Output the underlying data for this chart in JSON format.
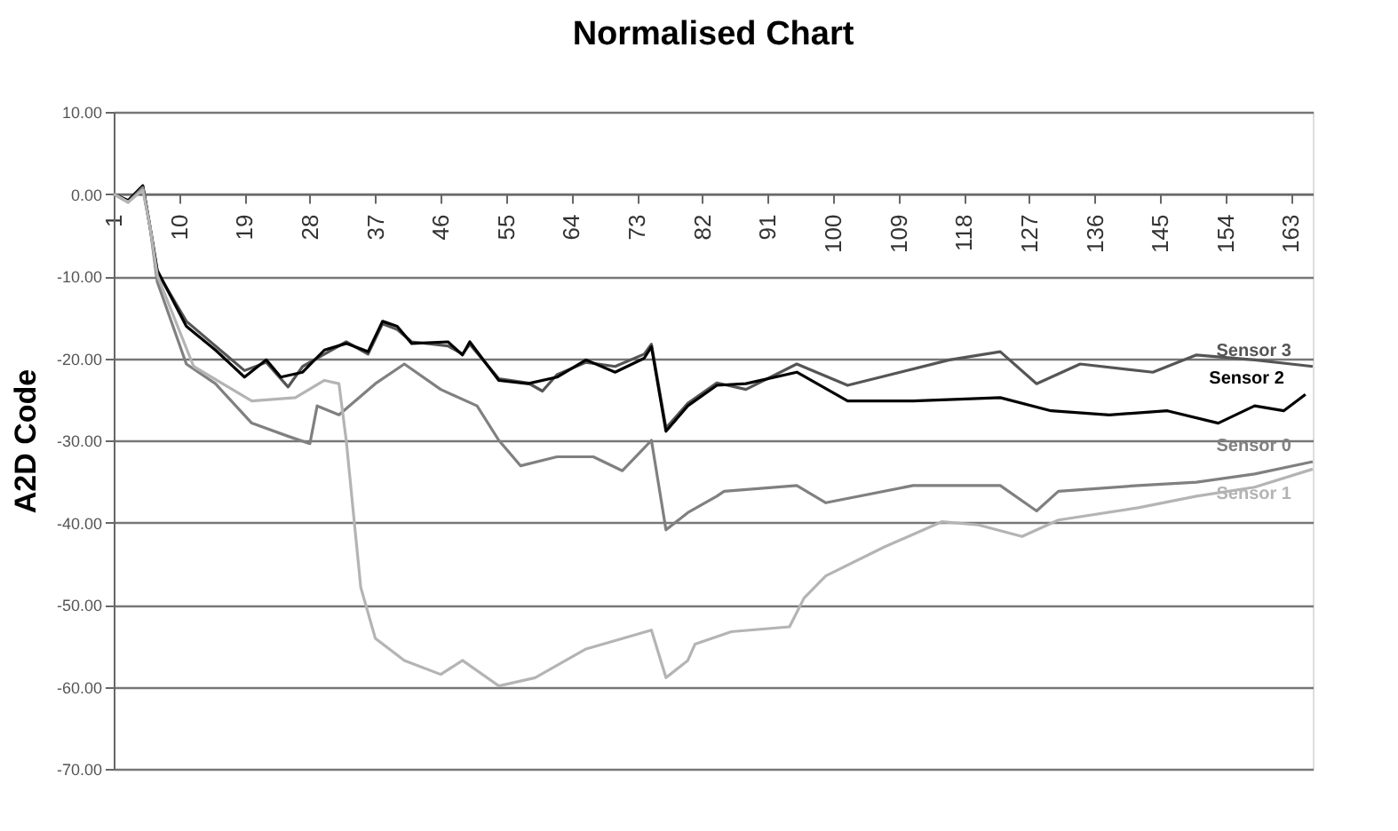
{
  "chart_data": {
    "type": "line",
    "title": "Normalised Chart",
    "ylabel": "A2D Code",
    "xlim": [
      1,
      166
    ],
    "xticks": [
      1,
      10,
      19,
      28,
      37,
      46,
      55,
      64,
      73,
      82,
      91,
      100,
      109,
      118,
      127,
      136,
      145,
      154,
      163
    ],
    "ylim": [
      -70,
      10
    ],
    "yticks": [
      {
        "value": 10,
        "label": "10.00"
      },
      {
        "value": 0,
        "label": "0.00"
      },
      {
        "value": -10,
        "label": "-10.00"
      },
      {
        "value": -20,
        "label": "-20.00"
      },
      {
        "value": -30,
        "label": "-30.00"
      },
      {
        "value": -40,
        "label": "-40.00"
      },
      {
        "value": -50,
        "label": "-50.00"
      },
      {
        "value": -60,
        "label": "-60.00"
      },
      {
        "value": -70,
        "label": "-70.00"
      }
    ],
    "grid": "y",
    "legend": false,
    "marker": "none",
    "line_style": "solid",
    "series": [
      {
        "name": "Sensor 3",
        "color": "#555555",
        "x": [
          1,
          3,
          5,
          6,
          7,
          11,
          15,
          19,
          22,
          25,
          27,
          30,
          33,
          36,
          38,
          40,
          42,
          47,
          49,
          50,
          54,
          58,
          60,
          62,
          66,
          70,
          74,
          75,
          77,
          80,
          84,
          88,
          95,
          102,
          116,
          123,
          128,
          134,
          144,
          150,
          158,
          163,
          166
        ],
        "values": [
          0,
          -0.8,
          1,
          -4,
          -9.5,
          -15.5,
          -18.5,
          -21.5,
          -20.5,
          -23.5,
          -21,
          -19.5,
          -18,
          -19.5,
          -15.8,
          -16.5,
          -18,
          -18.5,
          -19.5,
          -18.3,
          -22.5,
          -23,
          -24,
          -22,
          -20.5,
          -21,
          -19.5,
          -18.3,
          -28.5,
          -25.5,
          -23,
          -23.8,
          -20.7,
          -23.3,
          -20.2,
          -19.2,
          -23.1,
          -20.7,
          -21.7,
          -19.6,
          -20.2,
          -20.7,
          -21
        ]
      },
      {
        "name": "Sensor 2",
        "color": "#000000",
        "x": [
          1,
          3,
          5,
          6,
          7,
          11,
          15,
          19,
          22,
          24,
          27,
          30,
          33,
          36,
          38,
          40,
          42,
          47,
          49,
          50,
          54,
          58,
          62,
          66,
          70,
          74,
          75,
          77,
          80,
          84,
          88,
          95,
          102,
          111,
          123,
          130,
          138,
          146,
          153,
          158,
          162,
          165
        ],
        "values": [
          0,
          -0.8,
          1,
          -4,
          -9.3,
          -16.1,
          -19,
          -22.3,
          -20.2,
          -22.3,
          -21.7,
          -19,
          -18.2,
          -19.2,
          -15.5,
          -16.1,
          -18.2,
          -18,
          -19.6,
          -18,
          -22.7,
          -23.1,
          -22.3,
          -20.2,
          -21.7,
          -20,
          -18.6,
          -28.9,
          -25.8,
          -23.3,
          -23.1,
          -21.7,
          -25.2,
          -25.2,
          -24.8,
          -26.4,
          -26.9,
          -26.4,
          -27.9,
          -25.8,
          -26.4,
          -24.4
        ]
      },
      {
        "name": "Sensor 0",
        "color": "#808080",
        "x": [
          1,
          3,
          5,
          6,
          7,
          11,
          15,
          20,
          25,
          28,
          29,
          32,
          37,
          41,
          46,
          51,
          54,
          57,
          62,
          67,
          71,
          75,
          77,
          80,
          84,
          85,
          95,
          99,
          111,
          123,
          128,
          131,
          142,
          150,
          158,
          166
        ],
        "values": [
          0,
          -1,
          0.8,
          -4,
          -10.7,
          -20.7,
          -23.1,
          -27.9,
          -29.5,
          -30.4,
          -25.8,
          -26.9,
          -23.1,
          -20.7,
          -23.8,
          -25.8,
          -30,
          -33.1,
          -32,
          -32,
          -33.7,
          -30,
          -40.9,
          -38.8,
          -36.8,
          -36.2,
          -35.5,
          -37.6,
          -35.5,
          -35.5,
          -38.6,
          -36.2,
          -35.5,
          -35.1,
          -34.1,
          -32.6
        ]
      },
      {
        "name": "Sensor 1",
        "color": "#b4b4b4",
        "x": [
          1,
          3,
          5,
          6,
          7,
          12,
          20,
          26,
          30,
          32,
          33,
          35,
          37,
          41,
          46,
          49,
          54,
          59,
          66,
          75,
          77,
          80,
          81,
          86,
          94,
          96,
          99,
          107,
          115,
          120,
          126,
          131,
          142,
          150,
          158,
          166
        ],
        "values": [
          0,
          -1,
          0.5,
          -4,
          -9.9,
          -21,
          -25.2,
          -24.8,
          -22.7,
          -23.1,
          -30,
          -47.9,
          -54.1,
          -56.8,
          -58.5,
          -56.8,
          -59.9,
          -58.9,
          -55.4,
          -53.1,
          -58.9,
          -56.8,
          -54.8,
          -53.3,
          -52.7,
          -49.2,
          -46.5,
          -43,
          -39.9,
          -40.3,
          -41.7,
          -39.7,
          -38.2,
          -36.8,
          -35.7,
          -33.5
        ]
      }
    ]
  }
}
